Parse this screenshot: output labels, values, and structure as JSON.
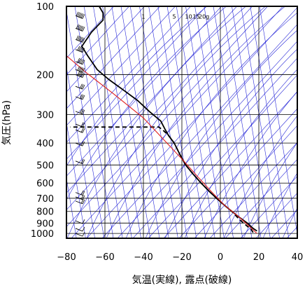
{
  "chart_data": {
    "type": "line",
    "title": "",
    "xlabel": "気温(実線), 露点(破線)",
    "ylabel": "気圧(hPa)",
    "xlim": [
      -80,
      40
    ],
    "ylim": [
      1050,
      100
    ],
    "y_scale": "log",
    "grid": true,
    "x_ticks": [
      -80,
      -60,
      -40,
      -20,
      0,
      20,
      40
    ],
    "x_tick_labels": [
      "−80",
      "−60",
      "−40",
      "−20",
      "0",
      "20",
      "40"
    ],
    "y_ticks": [
      100,
      200,
      300,
      400,
      500,
      600,
      700,
      800,
      900,
      1000
    ],
    "y_tick_labels": [
      "100",
      "200",
      "300",
      "400",
      "500",
      "600",
      "700",
      "800",
      "900",
      "1000"
    ],
    "mixing_ratio_labels": [
      {
        "text": "1",
        "p": 111,
        "t": -40
      },
      {
        "text": "5",
        "p": 111,
        "t": -24
      },
      {
        "text": "10",
        "p": 111,
        "t": -16.5
      },
      {
        "text": "15",
        "p": 111,
        "t": -12.5
      },
      {
        "text": "20g",
        "p": 111,
        "t": -8.5
      }
    ],
    "series": [
      {
        "style": "solid",
        "color": "#000000",
        "points": [
          {
            "t": 19,
            "p": 975
          },
          {
            "t": 17,
            "p": 950
          },
          {
            "t": 14,
            "p": 900
          },
          {
            "t": 10,
            "p": 850
          },
          {
            "t": 6,
            "p": 800
          },
          {
            "t": 2,
            "p": 750
          },
          {
            "t": -2,
            "p": 700
          },
          {
            "t": -6,
            "p": 650
          },
          {
            "t": -10,
            "p": 600
          },
          {
            "t": -14,
            "p": 550
          },
          {
            "t": -18,
            "p": 500
          },
          {
            "t": -21,
            "p": 450
          },
          {
            "t": -24,
            "p": 400
          },
          {
            "t": -27,
            "p": 370
          },
          {
            "t": -29,
            "p": 345
          },
          {
            "t": -31,
            "p": 320
          },
          {
            "t": -37,
            "p": 290
          },
          {
            "t": -43,
            "p": 260
          },
          {
            "t": -50,
            "p": 235
          },
          {
            "t": -58,
            "p": 210
          },
          {
            "t": -64,
            "p": 190
          },
          {
            "t": -69,
            "p": 165
          },
          {
            "t": -72,
            "p": 150
          },
          {
            "t": -67,
            "p": 130
          },
          {
            "t": -61,
            "p": 115
          },
          {
            "t": -61,
            "p": 107
          },
          {
            "t": -63,
            "p": 100
          }
        ]
      },
      {
        "style": "dashed",
        "color": "#000000",
        "points": [
          {
            "t": 17,
            "p": 990
          },
          {
            "t": 16,
            "p": 960
          },
          {
            "t": 14,
            "p": 930
          },
          {
            "t": 10,
            "p": 870
          },
          {
            "t": 6,
            "p": 800
          },
          {
            "t": 2,
            "p": 750
          },
          {
            "t": -2,
            "p": 700
          },
          {
            "t": -6,
            "p": 650
          },
          {
            "t": -10,
            "p": 600
          },
          {
            "t": -14,
            "p": 550
          },
          {
            "t": -18,
            "p": 500
          },
          {
            "t": -21,
            "p": 450
          },
          {
            "t": -24,
            "p": 400
          },
          {
            "t": -27,
            "p": 370
          },
          {
            "t": -30,
            "p": 350
          },
          {
            "t": -32,
            "p": 340
          },
          {
            "t": -78,
            "p": 340
          }
        ]
      },
      {
        "style": "solid",
        "color": "#e02020",
        "points": [
          {
            "t": 19,
            "p": 1000
          },
          {
            "t": 10,
            "p": 850
          },
          {
            "t": 2,
            "p": 750
          },
          {
            "t": -5,
            "p": 650
          },
          {
            "t": -12,
            "p": 560
          },
          {
            "t": -20,
            "p": 470
          },
          {
            "t": -29,
            "p": 390
          },
          {
            "t": -40,
            "p": 310
          },
          {
            "t": -55,
            "p": 245
          },
          {
            "t": -70,
            "p": 195
          },
          {
            "t": -80,
            "p": 165
          }
        ]
      }
    ],
    "wind_barbs": [
      {
        "p": 110,
        "speed": 60
      },
      {
        "p": 125,
        "speed": 55
      },
      {
        "p": 140,
        "speed": 60
      },
      {
        "p": 155,
        "speed": 50
      },
      {
        "p": 175,
        "speed": 45
      },
      {
        "p": 190,
        "speed": 50
      },
      {
        "p": 200,
        "speed": 45
      },
      {
        "p": 225,
        "speed": 30
      },
      {
        "p": 250,
        "speed": 30
      },
      {
        "p": 290,
        "speed": 25
      },
      {
        "p": 330,
        "speed": 20
      },
      {
        "p": 350,
        "speed": 20
      },
      {
        "p": 400,
        "speed": 15
      },
      {
        "p": 480,
        "speed": 15
      },
      {
        "p": 660,
        "speed": 20
      },
      {
        "p": 690,
        "speed": 20
      },
      {
        "p": 720,
        "speed": 15
      },
      {
        "p": 880,
        "speed": 10
      },
      {
        "p": 950,
        "speed": 10
      },
      {
        "p": 1000,
        "speed": 10
      }
    ],
    "line_colors": {
      "temperature": "#000000",
      "dewpoint": "#000000",
      "parcel": "#e02020",
      "reference": "#2828d8",
      "grid": "#000000"
    }
  }
}
